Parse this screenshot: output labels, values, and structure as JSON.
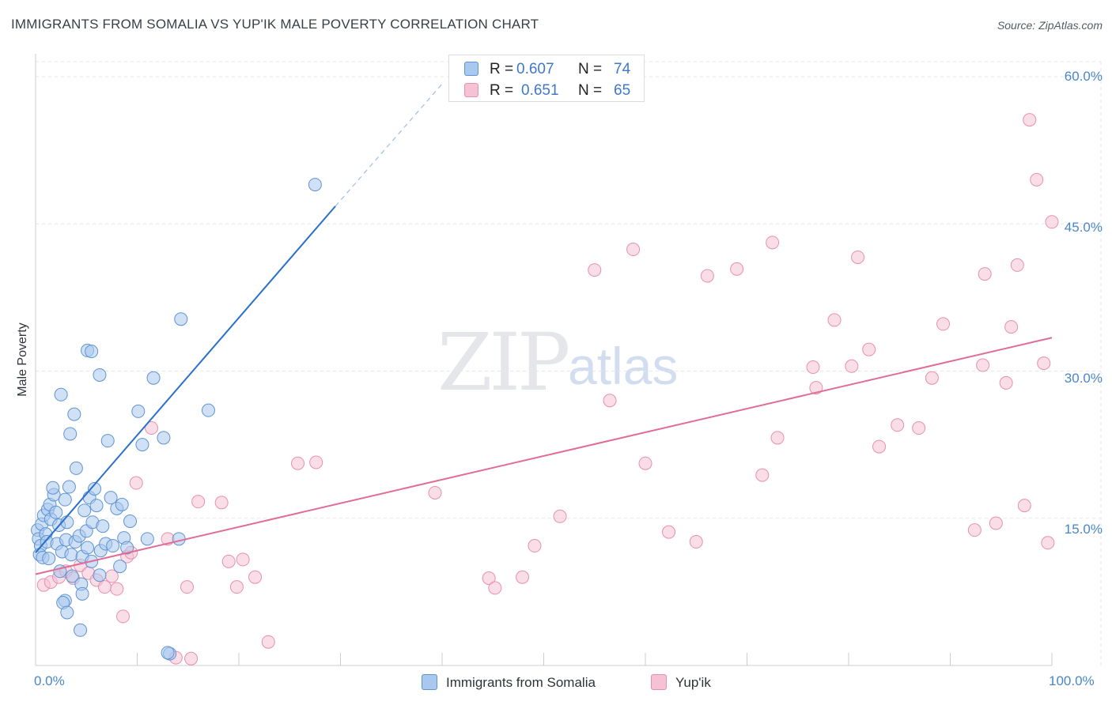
{
  "title": "IMMIGRANTS FROM SOMALIA VS YUP'IK MALE POVERTY CORRELATION CHART",
  "source": "Source: ZipAtlas.com",
  "watermark": {
    "part1": "ZIP",
    "part2": "atlas"
  },
  "colors": {
    "somalia_fill": "#a9c8ef",
    "somalia_stroke": "#5f93d2",
    "somalia_line": "#2a6fcc",
    "yupik_fill": "#f6c2d3",
    "yupik_stroke": "#e88fae",
    "yupik_line": "#e06c98",
    "grid": "#e4e7eb",
    "accent_text": "#3f78c8"
  },
  "legend_top": {
    "row1": {
      "r_label": "R =",
      "r_value": "0.607",
      "n_label": "N =",
      "n_value": "74"
    },
    "row2": {
      "r_label": "R =",
      "r_value": "0.651",
      "n_label": "N =",
      "n_value": "65"
    }
  },
  "chart_data": {
    "type": "scatter",
    "title": "IMMIGRANTS FROM SOMALIA VS YUP'IK MALE POVERTY CORRELATION CHART",
    "xlabel": "",
    "ylabel": "Male Poverty",
    "xlim": [
      0,
      100
    ],
    "ylim": [
      0,
      60
    ],
    "x_tick_labels": [
      "0.0%",
      "100.0%"
    ],
    "y_ticks": [
      15,
      30,
      45,
      60
    ],
    "y_tick_labels": [
      "15.0%",
      "30.0%",
      "45.0%",
      "60.0%"
    ],
    "grid": true,
    "legend_position": "bottom-center",
    "series": [
      {
        "name": "Immigrants from Somalia",
        "r": 0.607,
        "n": 74,
        "trend": {
          "x0": 0,
          "y0": 11.5,
          "x1": 29.5,
          "y1": 46.8,
          "dashed_to_x": 40.2,
          "dashed_to_y": 59.5
        },
        "points": [
          [
            0.2,
            13.8
          ],
          [
            0.3,
            12.9
          ],
          [
            0.5,
            12.2
          ],
          [
            0.4,
            11.3
          ],
          [
            0.6,
            14.4
          ],
          [
            0.8,
            15.3
          ],
          [
            0.7,
            11.0
          ],
          [
            1.0,
            13.4
          ],
          [
            1.2,
            15.9
          ],
          [
            1.1,
            12.6
          ],
          [
            1.4,
            16.4
          ],
          [
            1.5,
            14.9
          ],
          [
            1.3,
            10.9
          ],
          [
            1.8,
            17.4
          ],
          [
            1.7,
            18.1
          ],
          [
            2.0,
            15.6
          ],
          [
            2.3,
            14.3
          ],
          [
            2.1,
            12.4
          ],
          [
            2.6,
            11.6
          ],
          [
            2.4,
            9.6
          ],
          [
            2.9,
            16.9
          ],
          [
            3.1,
            14.6
          ],
          [
            3.0,
            12.8
          ],
          [
            3.3,
            18.2
          ],
          [
            3.5,
            11.3
          ],
          [
            3.6,
            9.1
          ],
          [
            3.4,
            23.6
          ],
          [
            3.8,
            25.6
          ],
          [
            4.0,
            20.1
          ],
          [
            3.9,
            12.6
          ],
          [
            4.3,
            13.2
          ],
          [
            4.6,
            11.1
          ],
          [
            4.5,
            8.3
          ],
          [
            4.8,
            15.8
          ],
          [
            5.0,
            13.7
          ],
          [
            5.3,
            17.1
          ],
          [
            5.1,
            12.0
          ],
          [
            5.6,
            14.6
          ],
          [
            5.5,
            10.6
          ],
          [
            5.8,
            18.0
          ],
          [
            6.0,
            16.3
          ],
          [
            6.4,
            11.7
          ],
          [
            6.3,
            9.2
          ],
          [
            6.6,
            14.2
          ],
          [
            6.9,
            12.4
          ],
          [
            7.1,
            22.9
          ],
          [
            7.4,
            17.1
          ],
          [
            7.6,
            12.2
          ],
          [
            8.0,
            16.0
          ],
          [
            8.3,
            10.1
          ],
          [
            2.5,
            27.6
          ],
          [
            2.9,
            6.6
          ],
          [
            2.7,
            6.4
          ],
          [
            3.1,
            5.4
          ],
          [
            4.4,
            3.6
          ],
          [
            4.6,
            7.3
          ],
          [
            5.1,
            32.1
          ],
          [
            5.5,
            32.0
          ],
          [
            6.3,
            29.6
          ],
          [
            8.5,
            16.4
          ],
          [
            8.7,
            13.0
          ],
          [
            9.0,
            12.0
          ],
          [
            9.3,
            14.7
          ],
          [
            10.1,
            25.9
          ],
          [
            10.5,
            22.5
          ],
          [
            11.0,
            12.9
          ],
          [
            11.6,
            29.3
          ],
          [
            12.6,
            23.2
          ],
          [
            14.1,
            12.9
          ],
          [
            17.0,
            26.0
          ],
          [
            13.2,
            1.2
          ],
          [
            13.0,
            1.3
          ],
          [
            14.3,
            35.3
          ],
          [
            27.5,
            49.0
          ]
        ]
      },
      {
        "name": "Yup'ik",
        "r": 0.651,
        "n": 65,
        "trend": {
          "x0": 0,
          "y0": 9.3,
          "x1": 100,
          "y1": 33.4
        },
        "points": [
          [
            0.8,
            8.2
          ],
          [
            1.5,
            8.5
          ],
          [
            2.3,
            9.0
          ],
          [
            3.0,
            9.6
          ],
          [
            3.7,
            8.9
          ],
          [
            4.4,
            10.2
          ],
          [
            5.2,
            9.4
          ],
          [
            6.0,
            8.7
          ],
          [
            6.8,
            8.0
          ],
          [
            7.5,
            9.1
          ],
          [
            8.0,
            7.8
          ],
          [
            8.6,
            5.0
          ],
          [
            9.0,
            11.1
          ],
          [
            9.4,
            11.5
          ],
          [
            9.9,
            18.6
          ],
          [
            11.4,
            24.2
          ],
          [
            13.0,
            12.9
          ],
          [
            13.8,
            0.8
          ],
          [
            14.9,
            8.0
          ],
          [
            15.3,
            0.7
          ],
          [
            16.0,
            16.7
          ],
          [
            18.3,
            16.6
          ],
          [
            19.0,
            10.6
          ],
          [
            19.8,
            8.0
          ],
          [
            20.4,
            10.8
          ],
          [
            21.6,
            9.0
          ],
          [
            22.9,
            2.4
          ],
          [
            25.8,
            20.6
          ],
          [
            27.6,
            20.7
          ],
          [
            39.3,
            17.6
          ],
          [
            44.6,
            8.9
          ],
          [
            45.2,
            7.9
          ],
          [
            47.9,
            9.0
          ],
          [
            49.1,
            12.2
          ],
          [
            51.6,
            15.2
          ],
          [
            55.0,
            40.3
          ],
          [
            56.5,
            27.0
          ],
          [
            58.8,
            42.4
          ],
          [
            60.0,
            20.6
          ],
          [
            62.3,
            13.6
          ],
          [
            65.0,
            12.6
          ],
          [
            66.1,
            39.7
          ],
          [
            69.0,
            40.4
          ],
          [
            71.5,
            19.4
          ],
          [
            72.5,
            43.1
          ],
          [
            73.0,
            23.2
          ],
          [
            76.5,
            30.4
          ],
          [
            76.8,
            28.3
          ],
          [
            78.6,
            35.2
          ],
          [
            80.3,
            30.5
          ],
          [
            80.9,
            41.6
          ],
          [
            82.0,
            32.2
          ],
          [
            83.0,
            22.3
          ],
          [
            84.8,
            24.5
          ],
          [
            86.9,
            24.2
          ],
          [
            88.2,
            29.3
          ],
          [
            89.3,
            34.8
          ],
          [
            92.4,
            13.8
          ],
          [
            93.2,
            30.6
          ],
          [
            93.4,
            39.9
          ],
          [
            94.5,
            14.5
          ],
          [
            95.5,
            28.8
          ],
          [
            96.0,
            34.5
          ],
          [
            96.6,
            40.8
          ],
          [
            97.3,
            16.3
          ]
        ],
        "extra_points": [
          [
            97.8,
            55.6
          ],
          [
            98.5,
            49.5
          ],
          [
            99.2,
            30.8
          ],
          [
            100.0,
            45.2
          ],
          [
            99.6,
            12.5
          ]
        ]
      }
    ]
  },
  "legend_bottom": {
    "items": [
      {
        "label": "Immigrants from Somalia"
      },
      {
        "label": "Yup'ik"
      }
    ]
  }
}
